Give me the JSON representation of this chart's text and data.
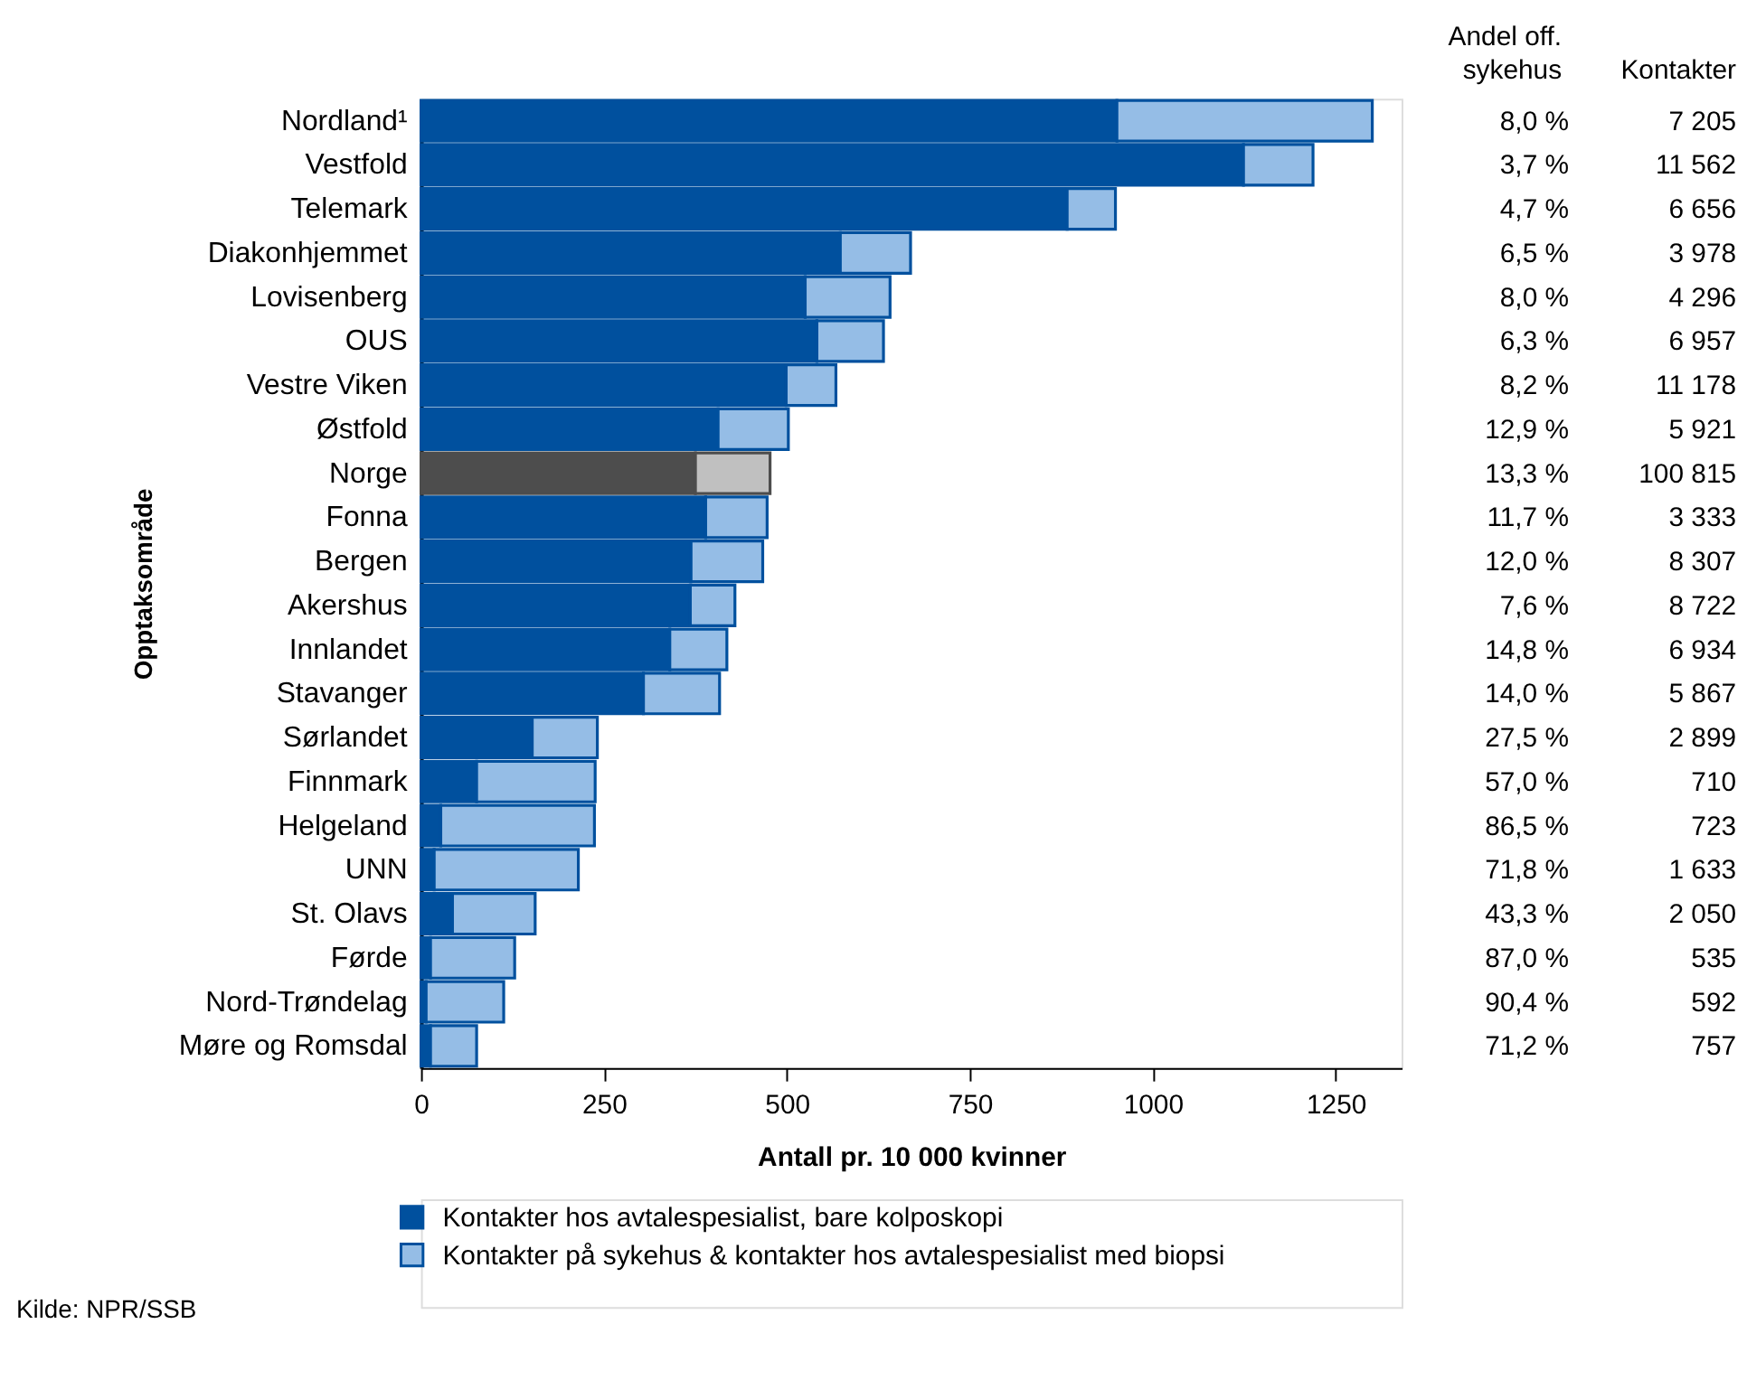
{
  "chart_data": {
    "type": "bar",
    "orientation": "horizontal",
    "stacked": true,
    "ylabel": "Opptaksområde",
    "xlabel": "Antall pr. 10 000 kvinner",
    "categories": [
      "Nordland¹",
      "Vestfold",
      "Telemark",
      "Diakonhjemmet",
      "Lovisenberg",
      "OUS",
      "Vestre Viken",
      "Østfold",
      "Norge",
      "Fonna",
      "Bergen",
      "Akershus",
      "Innlandet",
      "Stavanger",
      "Sørlandet",
      "Finnmark",
      "Helgeland",
      "UNN",
      "St. Olavs",
      "Førde",
      "Nord-Trøndelag",
      "Møre og Romsdal"
    ],
    "series": [
      {
        "name": "Kontakter hos avtalespesialist, bare kolposkopi",
        "color": "#00509e",
        "colors": [
          "#00509e",
          "#00509e",
          "#00509e",
          "#00509e",
          "#00509e",
          "#00509e",
          "#00509e",
          "#00509e",
          "#4d4d4d",
          "#00509e",
          "#00509e",
          "#00509e",
          "#00509e",
          "#00509e",
          "#00509e",
          "#00509e",
          "#00509e",
          "#00509e",
          "#00509e",
          "#00509e",
          "#00509e",
          "#00509e"
        ],
        "values": [
          951,
          1124,
          883,
          573,
          525,
          541,
          499,
          406,
          375,
          389,
          369,
          368,
          340,
          304,
          152,
          76,
          27,
          18,
          43,
          13,
          7,
          13
        ]
      },
      {
        "name": "Kontakter på sykehus & kontakter hos avtalespesialist med biopsi",
        "color": "#95bde6",
        "colors": [
          "#95bde6",
          "#95bde6",
          "#95bde6",
          "#95bde6",
          "#95bde6",
          "#95bde6",
          "#95bde6",
          "#95bde6",
          "#c0c0c0",
          "#95bde6",
          "#95bde6",
          "#95bde6",
          "#95bde6",
          "#95bde6",
          "#95bde6",
          "#95bde6",
          "#95bde6",
          "#95bde6",
          "#95bde6",
          "#95bde6",
          "#95bde6",
          "#95bde6"
        ],
        "values": [
          349,
          95,
          66,
          96,
          116,
          91,
          68,
          96,
          102,
          84,
          98,
          61,
          78,
          104,
          89,
          162,
          210,
          197,
          113,
          115,
          106,
          63
        ]
      }
    ],
    "xlim": [
      0,
      1340
    ],
    "xticks": [
      0,
      250,
      500,
      750,
      1000,
      1250
    ],
    "grid": false,
    "legend": "bottom",
    "annotations": [
      "Andel off.\nsykehus",
      "Kontakter",
      "8,0 %",
      "3,7 %",
      "4,7 %",
      "6,5 %",
      "8,0 %",
      "6,3 %",
      "8,2 %",
      "12,9 %",
      "13,3 %",
      "11,7 %",
      "12,0 %",
      "7,6 %",
      "14,8 %",
      "14,0 %",
      "27,5 %",
      "57,0 %",
      "86,5 %",
      "71,8 %",
      "43,3 %",
      "87,0 %",
      "90,4 %",
      "71,2 %",
      "7 205",
      "11 562",
      "6 656",
      "3 978",
      "4 296",
      "6 957",
      "11 178",
      "5 921",
      "100 815",
      "3 333",
      "8 307",
      "8 722",
      "6 934",
      "5 867",
      "2 899",
      "710",
      "723",
      "1 633",
      "2 050",
      "535",
      "592",
      "757",
      "Kilde: NPR/SSB"
    ]
  }
}
